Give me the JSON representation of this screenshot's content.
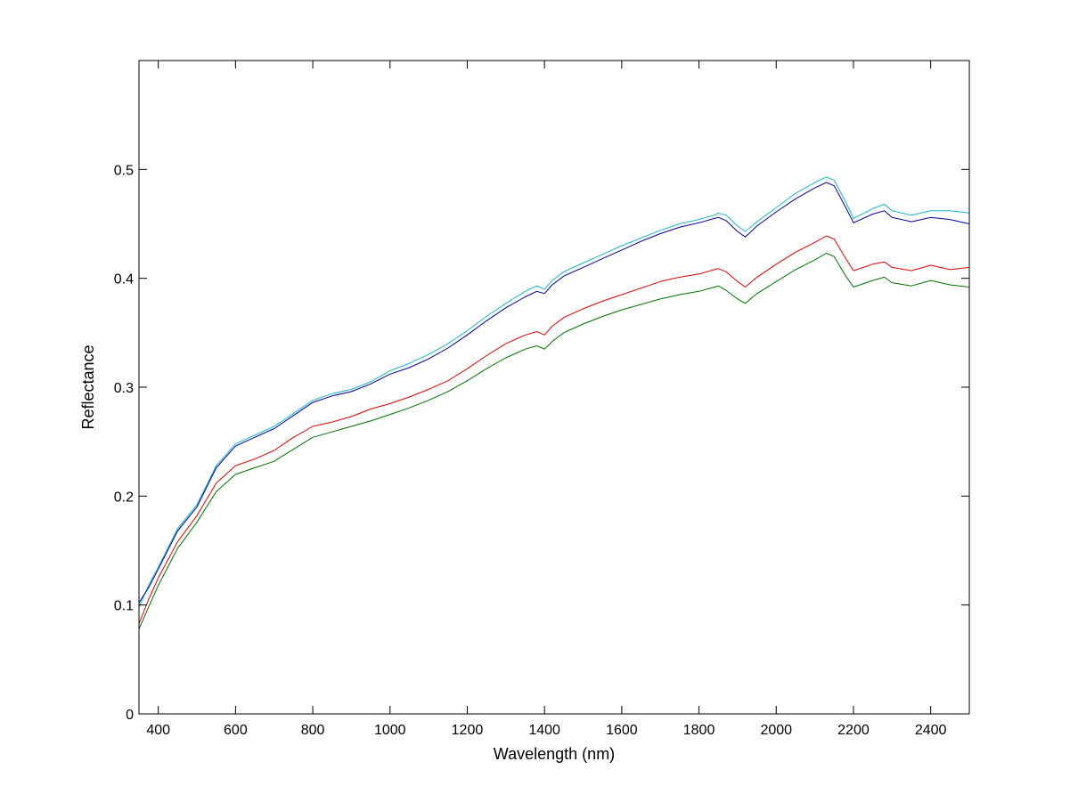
{
  "chart_data": {
    "type": "line",
    "title": "",
    "xlabel": "Wavelength (nm)",
    "ylabel": "Reflectance",
    "xlim": [
      350,
      2500
    ],
    "ylim": [
      0,
      0.6
    ],
    "xticks": [
      400,
      600,
      800,
      1000,
      1200,
      1400,
      1600,
      1800,
      2000,
      2200,
      2400
    ],
    "yticks": [
      0,
      0.1,
      0.2,
      0.3,
      0.4,
      0.5
    ],
    "x_tick_labels": [
      "400",
      "600",
      "800",
      "1000",
      "1200",
      "1400",
      "1600",
      "1800",
      "2000",
      "2200",
      "2400"
    ],
    "y_tick_labels": [
      "0",
      "0.1",
      "0.2",
      "0.3",
      "0.4",
      "0.5"
    ],
    "grid": false,
    "legend": "none",
    "x": [
      350,
      375,
      400,
      450,
      500,
      550,
      600,
      650,
      700,
      750,
      800,
      850,
      900,
      950,
      1000,
      1050,
      1100,
      1150,
      1200,
      1250,
      1300,
      1350,
      1380,
      1400,
      1420,
      1450,
      1500,
      1550,
      1600,
      1650,
      1700,
      1750,
      1800,
      1840,
      1850,
      1870,
      1900,
      1920,
      1950,
      2000,
      2050,
      2100,
      2130,
      2150,
      2180,
      2200,
      2250,
      2280,
      2300,
      2350,
      2400,
      2450,
      2500
    ],
    "series": [
      {
        "color": "#1ab6cc",
        "values": [
          0.098,
          0.118,
          0.135,
          0.17,
          0.192,
          0.228,
          0.248,
          0.256,
          0.264,
          0.276,
          0.288,
          0.294,
          0.298,
          0.305,
          0.315,
          0.322,
          0.33,
          0.34,
          0.352,
          0.365,
          0.377,
          0.388,
          0.393,
          0.39,
          0.398,
          0.406,
          0.414,
          0.422,
          0.43,
          0.437,
          0.444,
          0.45,
          0.454,
          0.458,
          0.46,
          0.458,
          0.448,
          0.443,
          0.452,
          0.465,
          0.478,
          0.488,
          0.493,
          0.49,
          0.47,
          0.455,
          0.464,
          0.468,
          0.462,
          0.458,
          0.462,
          0.462,
          0.46
        ]
      },
      {
        "color": "#0000a0",
        "values": [
          0.102,
          0.116,
          0.133,
          0.168,
          0.19,
          0.226,
          0.246,
          0.254,
          0.262,
          0.274,
          0.286,
          0.292,
          0.296,
          0.303,
          0.312,
          0.318,
          0.326,
          0.336,
          0.348,
          0.361,
          0.373,
          0.383,
          0.388,
          0.386,
          0.394,
          0.402,
          0.41,
          0.418,
          0.426,
          0.434,
          0.441,
          0.447,
          0.451,
          0.455,
          0.456,
          0.453,
          0.443,
          0.438,
          0.448,
          0.461,
          0.473,
          0.483,
          0.488,
          0.485,
          0.465,
          0.451,
          0.459,
          0.462,
          0.456,
          0.452,
          0.456,
          0.454,
          0.45
        ]
      },
      {
        "color": "#e00000",
        "values": [
          0.083,
          0.105,
          0.125,
          0.158,
          0.182,
          0.212,
          0.228,
          0.234,
          0.242,
          0.254,
          0.264,
          0.268,
          0.273,
          0.28,
          0.285,
          0.291,
          0.298,
          0.306,
          0.317,
          0.329,
          0.34,
          0.348,
          0.351,
          0.348,
          0.356,
          0.364,
          0.372,
          0.379,
          0.385,
          0.391,
          0.397,
          0.401,
          0.404,
          0.408,
          0.409,
          0.406,
          0.397,
          0.392,
          0.401,
          0.413,
          0.424,
          0.433,
          0.439,
          0.436,
          0.418,
          0.407,
          0.413,
          0.415,
          0.41,
          0.407,
          0.412,
          0.408,
          0.41
        ]
      },
      {
        "color": "#007000",
        "values": [
          0.078,
          0.098,
          0.118,
          0.152,
          0.176,
          0.204,
          0.22,
          0.226,
          0.232,
          0.243,
          0.254,
          0.259,
          0.264,
          0.269,
          0.275,
          0.281,
          0.288,
          0.296,
          0.306,
          0.317,
          0.327,
          0.335,
          0.338,
          0.335,
          0.342,
          0.35,
          0.358,
          0.365,
          0.371,
          0.376,
          0.381,
          0.385,
          0.388,
          0.392,
          0.393,
          0.389,
          0.381,
          0.377,
          0.386,
          0.397,
          0.408,
          0.417,
          0.423,
          0.42,
          0.402,
          0.392,
          0.398,
          0.401,
          0.396,
          0.393,
          0.398,
          0.394,
          0.392
        ]
      }
    ]
  }
}
